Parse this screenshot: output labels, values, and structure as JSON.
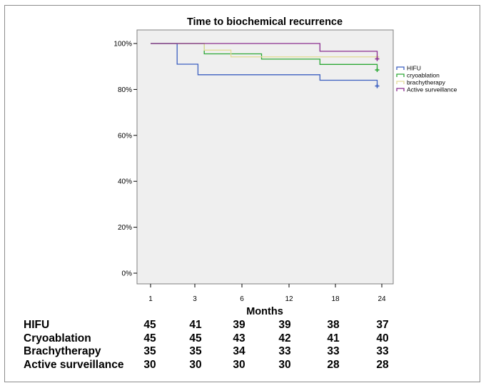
{
  "chart_data": {
    "type": "line",
    "step": true,
    "title": "Time to biochemical recurrence",
    "xlabel": "Months",
    "ylabel": "",
    "x_ticks": [
      "1",
      "3",
      "6",
      "12",
      "18",
      "24"
    ],
    "y_ticks": [
      "100%",
      "80%",
      "60%",
      "40%",
      "20%",
      "0%"
    ],
    "ylim": [
      0,
      100
    ],
    "grid": false,
    "legend_position": "right",
    "series": [
      {
        "name": "HIFU",
        "color": "#3b5fc0",
        "points": [
          [
            1,
            100
          ],
          [
            2.2,
            100
          ],
          [
            2.2,
            91
          ],
          [
            3.2,
            91
          ],
          [
            3.2,
            86.4
          ],
          [
            16,
            86.4
          ],
          [
            16,
            84
          ],
          [
            23.4,
            84
          ],
          [
            23.4,
            81.5
          ]
        ],
        "censor": [
          [
            23.4,
            81.5
          ]
        ]
      },
      {
        "name": "cryoablation",
        "color": "#2da836",
        "points": [
          [
            1,
            100
          ],
          [
            3.6,
            100
          ],
          [
            3.6,
            95.5
          ],
          [
            8.5,
            95.5
          ],
          [
            8.5,
            93.2
          ],
          [
            16,
            93.2
          ],
          [
            16,
            90.9
          ],
          [
            23.4,
            90.9
          ],
          [
            23.4,
            88.5
          ]
        ],
        "censor": [
          [
            23.4,
            88.5
          ]
        ]
      },
      {
        "name": "brachytherapy",
        "color": "#e3dc9a",
        "points": [
          [
            1,
            100
          ],
          [
            3.6,
            100
          ],
          [
            3.6,
            97.1
          ],
          [
            5.3,
            97.1
          ],
          [
            5.3,
            94.2
          ],
          [
            23.4,
            94.2
          ]
        ],
        "censor": [
          [
            23.4,
            94.2
          ]
        ]
      },
      {
        "name": "Active surveillance",
        "color": "#8a2d8f",
        "points": [
          [
            1,
            100
          ],
          [
            16,
            100
          ],
          [
            16,
            96.6
          ],
          [
            23.4,
            96.6
          ],
          [
            23.4,
            93.3
          ]
        ],
        "censor": [
          [
            23.4,
            93.3
          ]
        ]
      }
    ]
  },
  "risk_table": {
    "rows": [
      {
        "label": "HIFU",
        "values": [
          "45",
          "41",
          "39",
          "39",
          "38",
          "37"
        ]
      },
      {
        "label": "Cryoablation",
        "values": [
          "45",
          "45",
          "43",
          "42",
          "41",
          "40"
        ]
      },
      {
        "label": "Brachytherapy",
        "values": [
          "35",
          "35",
          "34",
          "33",
          "33",
          "33"
        ]
      },
      {
        "label": "Active surveillance",
        "values": [
          "30",
          "30",
          "30",
          "30",
          "28",
          "28"
        ]
      }
    ]
  }
}
